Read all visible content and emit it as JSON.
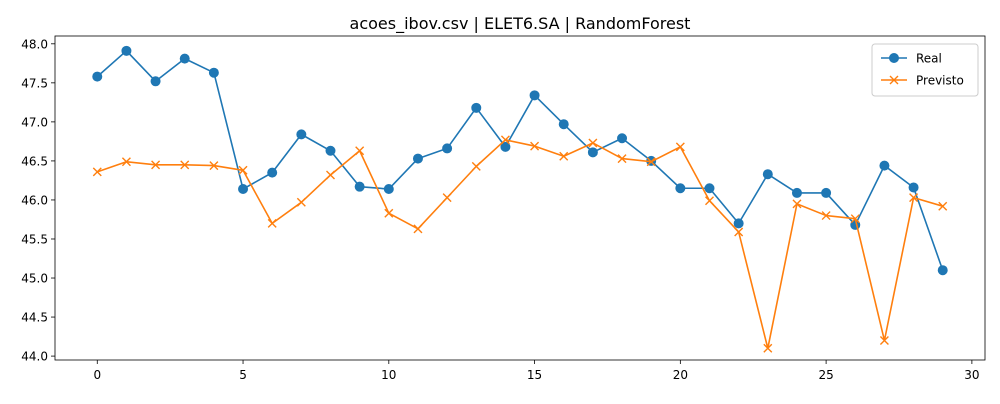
{
  "chart_data": {
    "type": "line",
    "title": "acoes_ibov.csv | ELET6.SA | RandomForest",
    "xlabel": "",
    "ylabel": "",
    "xlim": [
      -1.45,
      30.45
    ],
    "ylim": [
      43.95,
      48.1
    ],
    "x_ticks": [
      0,
      5,
      10,
      15,
      20,
      25,
      30
    ],
    "y_ticks": [
      44.0,
      44.5,
      45.0,
      45.5,
      46.0,
      46.5,
      47.0,
      47.5,
      48.0
    ],
    "grid": false,
    "legend_position": "top-right",
    "x": [
      0,
      1,
      2,
      3,
      4,
      5,
      6,
      7,
      8,
      9,
      10,
      11,
      12,
      13,
      14,
      15,
      16,
      17,
      18,
      19,
      20,
      21,
      22,
      23,
      24,
      25,
      26,
      27,
      28,
      29
    ],
    "series": [
      {
        "name": "Real",
        "color": "#1f77b4",
        "marker": "circle",
        "values": [
          47.58,
          47.91,
          47.52,
          47.81,
          47.63,
          46.14,
          46.35,
          46.84,
          46.63,
          46.17,
          46.14,
          46.53,
          46.66,
          47.18,
          46.68,
          47.34,
          46.97,
          46.61,
          46.79,
          46.5,
          46.15,
          46.15,
          45.7,
          46.33,
          46.09,
          46.09,
          45.68,
          46.44,
          46.16,
          45.1
        ]
      },
      {
        "name": "Previsto",
        "color": "#ff7f0e",
        "marker": "x",
        "values": [
          46.36,
          46.49,
          46.45,
          46.45,
          46.44,
          46.38,
          45.7,
          45.97,
          46.32,
          46.63,
          45.83,
          45.63,
          46.03,
          46.43,
          46.77,
          46.69,
          46.56,
          46.73,
          46.53,
          46.49,
          46.68,
          45.99,
          45.59,
          44.1,
          45.95,
          45.8,
          45.76,
          44.2,
          46.03,
          45.92
        ]
      }
    ]
  }
}
